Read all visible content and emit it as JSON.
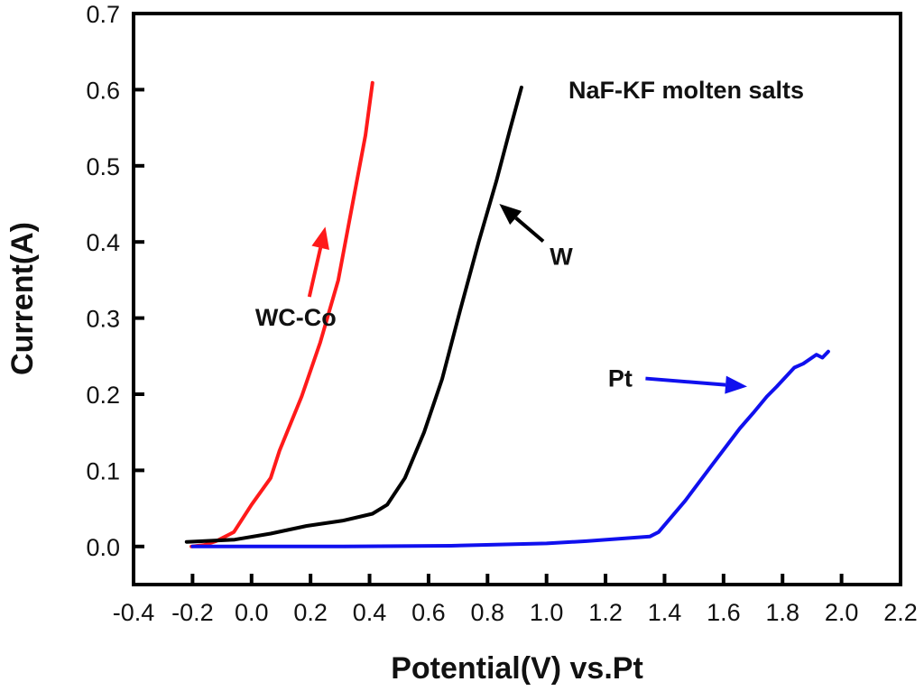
{
  "chart_data": {
    "type": "line",
    "title": "",
    "xlabel": "Potential(V) vs.Pt",
    "ylabel": "Current(A)",
    "xlim": [
      -0.4,
      2.2
    ],
    "ylim": [
      -0.05,
      0.7
    ],
    "grid": false,
    "xticks": [
      -0.4,
      -0.2,
      0.0,
      0.2,
      0.4,
      0.6,
      0.8,
      1.0,
      1.2,
      1.4,
      1.6,
      1.8,
      2.0,
      2.2
    ],
    "xtick_labels": [
      "-0.4",
      "-0.2",
      "0.0",
      "0.2",
      "0.4",
      "0.6",
      "0.8",
      "1.0",
      "1.2",
      "1.4",
      "1.6",
      "1.8",
      "2.0",
      "2.2"
    ],
    "yticks": [
      0.0,
      0.1,
      0.2,
      0.3,
      0.4,
      0.5,
      0.6,
      0.7
    ],
    "ytick_labels": [
      "0.0",
      "0.1",
      "0.2",
      "0.3",
      "0.4",
      "0.5",
      "0.6",
      "0.7"
    ],
    "series": [
      {
        "name": "WC-Co",
        "color": "#ff1a1a",
        "x": [
          -0.204,
          -0.16,
          -0.12,
          -0.06,
          0.0,
          0.065,
          0.095,
          0.17,
          0.233,
          0.294,
          0.34,
          0.386,
          0.41
        ],
        "y": [
          0.0,
          0.002,
          0.007,
          0.019,
          0.055,
          0.09,
          0.126,
          0.197,
          0.268,
          0.35,
          0.445,
          0.54,
          0.609
        ]
      },
      {
        "name": "W",
        "color": "#000000",
        "x": [
          -0.22,
          -0.057,
          0.065,
          0.187,
          0.31,
          0.41,
          0.46,
          0.52,
          0.585,
          0.646,
          0.707,
          0.77,
          0.83,
          0.875,
          0.915
        ],
        "y": [
          0.006,
          0.009,
          0.017,
          0.027,
          0.034,
          0.043,
          0.055,
          0.09,
          0.15,
          0.22,
          0.31,
          0.4,
          0.48,
          0.546,
          0.603
        ]
      },
      {
        "name": "Pt",
        "color": "#1010ee",
        "x": [
          -0.2,
          0.3,
          0.676,
          1.0,
          1.135,
          1.35,
          1.38,
          1.47,
          1.563,
          1.655,
          1.7,
          1.747,
          1.78,
          1.84,
          1.87,
          1.915,
          1.935,
          1.955
        ],
        "y": [
          0.0,
          0.0,
          0.001,
          0.004,
          0.007,
          0.013,
          0.019,
          0.06,
          0.108,
          0.155,
          0.175,
          0.197,
          0.21,
          0.235,
          0.24,
          0.252,
          0.248,
          0.256
        ]
      }
    ],
    "annotations": [
      {
        "text": "NaF-KF molten salts",
        "type": "label"
      },
      {
        "text": "WC-Co",
        "type": "arrow-label",
        "color": "#ff1a1a",
        "x": 0.15,
        "y": 0.29,
        "arrow_to": [
          0.25,
          0.42
        ]
      },
      {
        "text": "W",
        "type": "arrow-label",
        "color": "#000000",
        "x": 1.05,
        "y": 0.37,
        "arrow_to": [
          0.84,
          0.45
        ]
      },
      {
        "text": "Pt",
        "type": "arrow-label",
        "color": "#1010ee",
        "x": 1.25,
        "y": 0.21,
        "arrow_to": [
          1.68,
          0.21
        ]
      }
    ]
  }
}
